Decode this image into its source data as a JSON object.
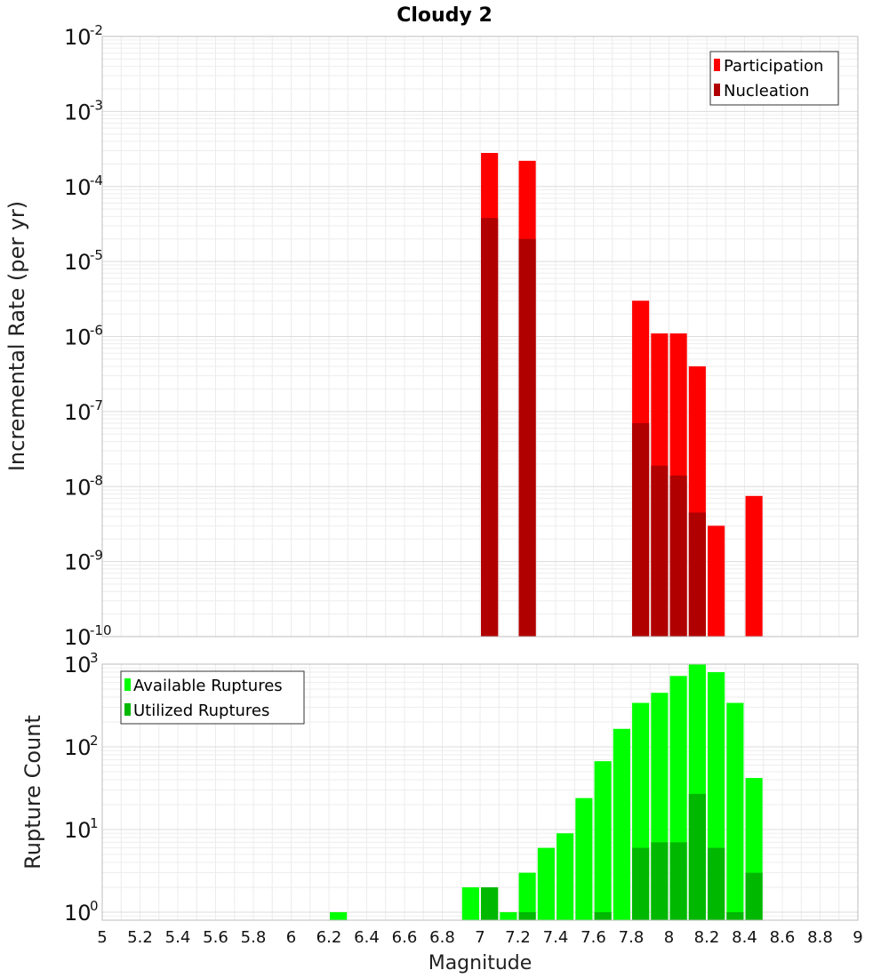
{
  "chart_data": [
    {
      "type": "bar",
      "title": "Cloudy 2",
      "ylabel": "Incremental Rate (per yr)",
      "xlabel": "",
      "yscale": "log",
      "xlim": [
        5,
        9
      ],
      "ylim": [
        1e-10,
        0.01
      ],
      "ytick_exponents": [
        "-10",
        "-9",
        "-8",
        "-7",
        "-6",
        "-5",
        "-4",
        "-3",
        "-2"
      ],
      "ytick_base": "10",
      "grid": true,
      "legend_position": "top-right",
      "bar_width": 0.09,
      "series": [
        {
          "name": "Participation",
          "color": "#ff0000",
          "x": [
            7.05,
            7.25,
            7.85,
            7.95,
            8.05,
            8.15,
            8.25,
            8.45
          ],
          "values": [
            0.00028,
            0.00022,
            3e-06,
            1.1e-06,
            1.1e-06,
            4e-07,
            3e-09,
            7.5e-09
          ]
        },
        {
          "name": "Nucleation",
          "color": "#b00000",
          "x": [
            7.05,
            7.25,
            7.85,
            7.95,
            8.05,
            8.15
          ],
          "values": [
            3.8e-05,
            2e-05,
            7e-08,
            1.9e-08,
            1.4e-08,
            4.5e-09
          ]
        }
      ]
    },
    {
      "type": "bar",
      "title": "",
      "ylabel": "Rupture Count",
      "xlabel": "Magnitude",
      "yscale": "log",
      "xlim": [
        5,
        9
      ],
      "ylim": [
        0.8,
        1000
      ],
      "ytick_exponents": [
        "0",
        "1",
        "2",
        "3"
      ],
      "ytick_base": "10",
      "xticks": [
        "5",
        "5.2",
        "5.4",
        "5.6",
        "5.8",
        "6",
        "6.2",
        "6.4",
        "6.6",
        "6.8",
        "7",
        "7.2",
        "7.4",
        "7.6",
        "7.8",
        "8",
        "8.2",
        "8.4",
        "8.6",
        "8.8",
        "9"
      ],
      "grid": true,
      "legend_position": "top-left",
      "bar_width": 0.09,
      "series": [
        {
          "name": "Available Ruptures",
          "color": "#00ff00",
          "x": [
            6.25,
            6.95,
            7.05,
            7.15,
            7.25,
            7.35,
            7.45,
            7.55,
            7.65,
            7.75,
            7.85,
            7.95,
            8.05,
            8.15,
            8.25,
            8.35,
            8.45
          ],
          "values": [
            1,
            2,
            2,
            1,
            3,
            6,
            9,
            24,
            67,
            165,
            340,
            450,
            720,
            1000,
            800,
            340,
            42
          ]
        },
        {
          "name": "Utilized Ruptures",
          "color": "#00b800",
          "x": [
            7.05,
            7.25,
            7.65,
            7.85,
            7.95,
            8.05,
            8.15,
            8.25,
            8.35,
            8.45
          ],
          "values": [
            2,
            1,
            1,
            6,
            7,
            7,
            27,
            6,
            1,
            3
          ]
        }
      ]
    }
  ]
}
